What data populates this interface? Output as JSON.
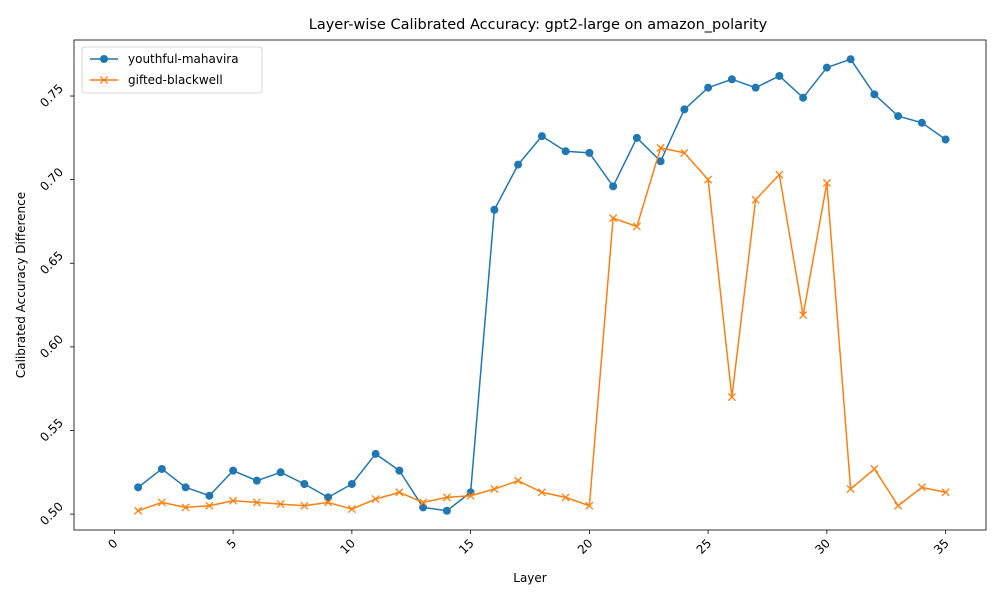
{
  "chart_data": {
    "type": "line",
    "title": "Layer-wise Calibrated Accuracy: gpt2-large on amazon_polarity",
    "xlabel": "Layer",
    "ylabel": "Calibrated Accuracy Difference",
    "xlim": [
      -1.7,
      36.7
    ],
    "ylim": [
      0.4905,
      0.7835
    ],
    "xticks": [
      0,
      5,
      10,
      15,
      20,
      25,
      30,
      35
    ],
    "yticks": [
      0.5,
      0.55,
      0.6,
      0.65,
      0.7,
      0.75
    ],
    "ytick_labels": [
      "0.50",
      "0.55",
      "0.60",
      "0.65",
      "0.70",
      "0.75"
    ],
    "grid": false,
    "legend_position": "upper left",
    "x": [
      1,
      2,
      3,
      4,
      5,
      6,
      7,
      8,
      9,
      10,
      11,
      12,
      13,
      14,
      15,
      16,
      17,
      18,
      19,
      20,
      21,
      22,
      23,
      24,
      25,
      26,
      27,
      28,
      29,
      30,
      31,
      32,
      33,
      34,
      35
    ],
    "series": [
      {
        "name": "youthful-mahavira",
        "color": "#1f77b4",
        "marker": "circle",
        "values": [
          0.516,
          0.527,
          0.516,
          0.511,
          0.526,
          0.52,
          0.525,
          0.518,
          0.51,
          0.518,
          0.536,
          0.526,
          0.504,
          0.502,
          0.513,
          0.682,
          0.709,
          0.726,
          0.717,
          0.716,
          0.696,
          0.725,
          0.711,
          0.742,
          0.755,
          0.76,
          0.755,
          0.762,
          0.749,
          0.767,
          0.772,
          0.751,
          0.738,
          0.734,
          0.724
        ]
      },
      {
        "name": "gifted-blackwell",
        "color": "#ff7f0e",
        "marker": "x",
        "values": [
          0.502,
          0.507,
          0.504,
          0.505,
          0.508,
          0.507,
          0.506,
          0.505,
          0.507,
          0.503,
          0.509,
          0.513,
          0.507,
          0.51,
          0.511,
          0.515,
          0.52,
          0.513,
          0.51,
          0.505,
          0.677,
          0.672,
          0.719,
          0.716,
          0.7,
          0.57,
          0.688,
          0.703,
          0.619,
          0.698,
          0.515,
          0.527,
          0.505,
          0.516,
          0.513
        ]
      }
    ]
  }
}
